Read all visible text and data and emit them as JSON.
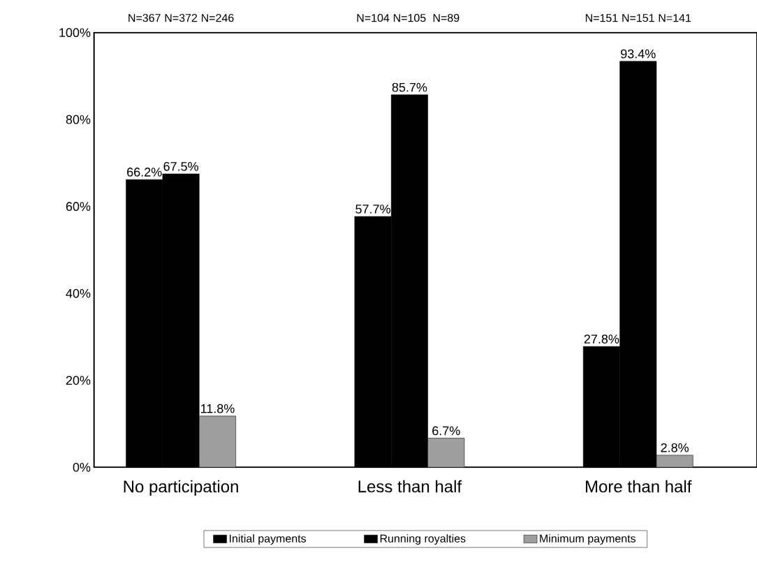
{
  "chart_data": {
    "type": "bar",
    "categories": [
      "No participation",
      "Less than half",
      "More than half"
    ],
    "series": [
      {
        "name": "Initial payments",
        "color": "#000000",
        "values": [
          66.2,
          57.7,
          27.8
        ],
        "value_labels": [
          "66.2%",
          "57.7%",
          "27.8%"
        ]
      },
      {
        "name": "Running royalties",
        "color": "#000000",
        "values": [
          67.5,
          85.7,
          93.4
        ],
        "value_labels": [
          "67.5%",
          "85.7%",
          "93.4%"
        ]
      },
      {
        "name": "Minimum payments",
        "color": "#9e9e9e",
        "values": [
          11.8,
          6.7,
          2.8
        ],
        "value_labels": [
          "11.8%",
          "6.7%",
          "2.8%"
        ]
      }
    ],
    "ylim": [
      0,
      100
    ],
    "yticks": [
      {
        "value": 0,
        "label": "0%"
      },
      {
        "value": 20,
        "label": "20%"
      },
      {
        "value": 40,
        "label": "40%"
      },
      {
        "value": 60,
        "label": "60%"
      },
      {
        "value": 80,
        "label": "80%"
      },
      {
        "value": 100,
        "label": "100%"
      }
    ],
    "annotations": [
      "N=367",
      "N=372",
      "N=246",
      "N=104",
      "N=105",
      "N=89",
      "N=151",
      "N=151",
      "N=141"
    ],
    "legend": "bottom",
    "grid": false
  }
}
